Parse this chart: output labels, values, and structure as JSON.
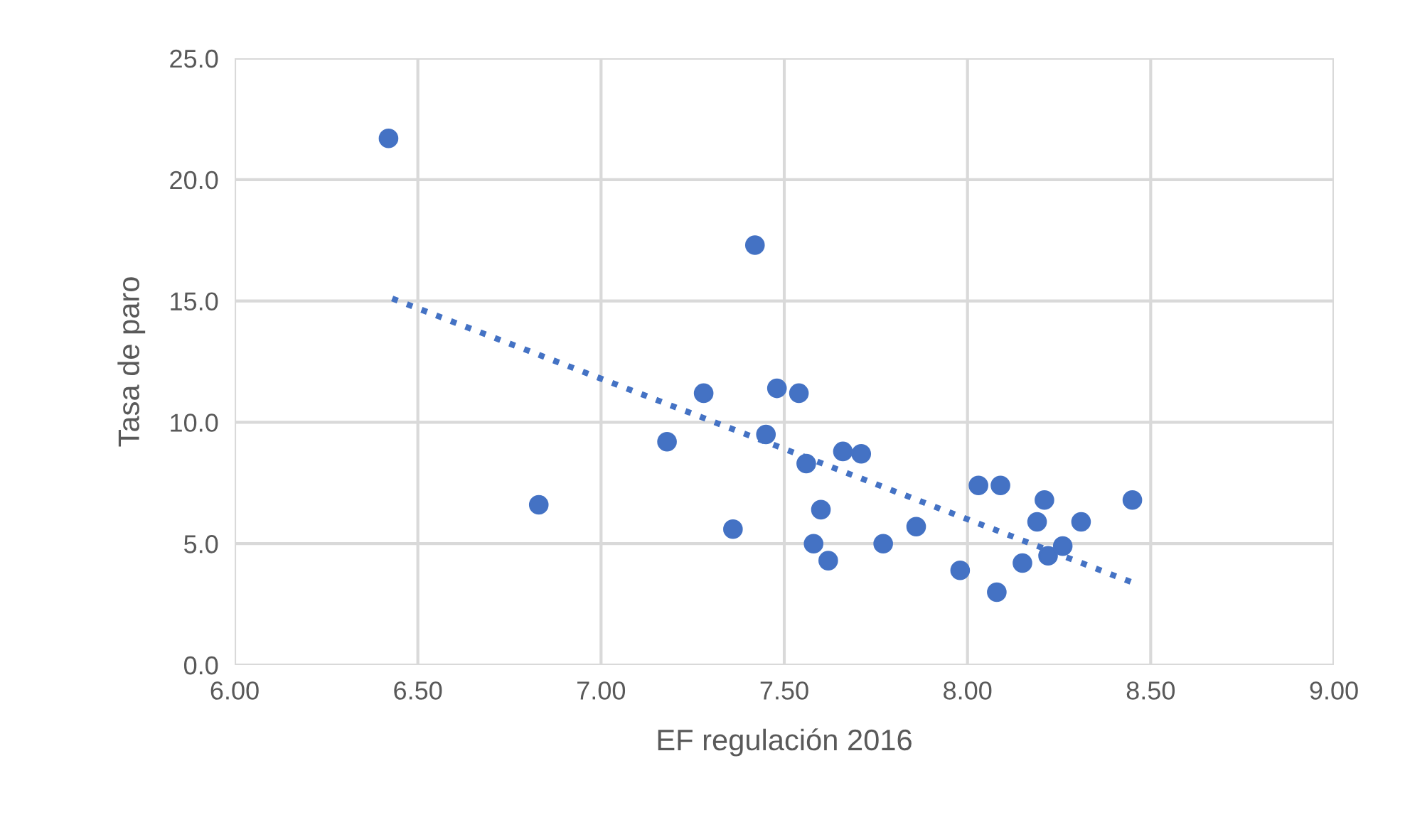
{
  "chart_data": {
    "type": "scatter",
    "xlabel": "EF regulación 2016",
    "ylabel": "Tasa de paro",
    "xlim": [
      6.0,
      9.0
    ],
    "xticks": [
      {
        "value": 6.0,
        "label": "6.00"
      },
      {
        "value": 6.5,
        "label": "6.50"
      },
      {
        "value": 7.0,
        "label": "7.00"
      },
      {
        "value": 7.5,
        "label": "7.50"
      },
      {
        "value": 8.0,
        "label": "8.00"
      },
      {
        "value": 8.5,
        "label": "8.50"
      },
      {
        "value": 9.0,
        "label": "9.00"
      }
    ],
    "ylim": [
      0,
      25
    ],
    "yticks": [
      {
        "value": 0,
        "label": "0.0"
      },
      {
        "value": 5,
        "label": "5.0"
      },
      {
        "value": 10,
        "label": "10.0"
      },
      {
        "value": 15,
        "label": "15.0"
      },
      {
        "value": 20,
        "label": "20.0"
      },
      {
        "value": 25,
        "label": "25.0"
      }
    ],
    "grid": true,
    "marker": "circle",
    "series": [
      {
        "color": "#4472c4",
        "x": [
          6.42,
          6.83,
          7.18,
          7.28,
          7.36,
          7.42,
          7.45,
          7.48,
          7.54,
          7.56,
          7.58,
          7.6,
          7.62,
          7.66,
          7.71,
          7.77,
          7.86,
          7.98,
          8.03,
          8.08,
          8.09,
          8.15,
          8.19,
          8.21,
          8.22,
          8.26,
          8.31,
          8.45
        ],
        "values": [
          21.7,
          6.6,
          9.2,
          11.2,
          5.6,
          17.3,
          9.5,
          11.4,
          11.2,
          8.3,
          5.0,
          6.4,
          4.3,
          8.8,
          8.7,
          5.0,
          5.7,
          3.9,
          7.4,
          3.0,
          7.4,
          4.2,
          5.9,
          6.8,
          4.5,
          4.9,
          5.9,
          6.8
        ]
      },
      {
        "type": "line",
        "color": "#4472c4",
        "line_style": "dotted",
        "marker": "none",
        "x": [
          6.43,
          8.45
        ],
        "values": [
          15.1,
          3.4
        ]
      }
    ]
  }
}
